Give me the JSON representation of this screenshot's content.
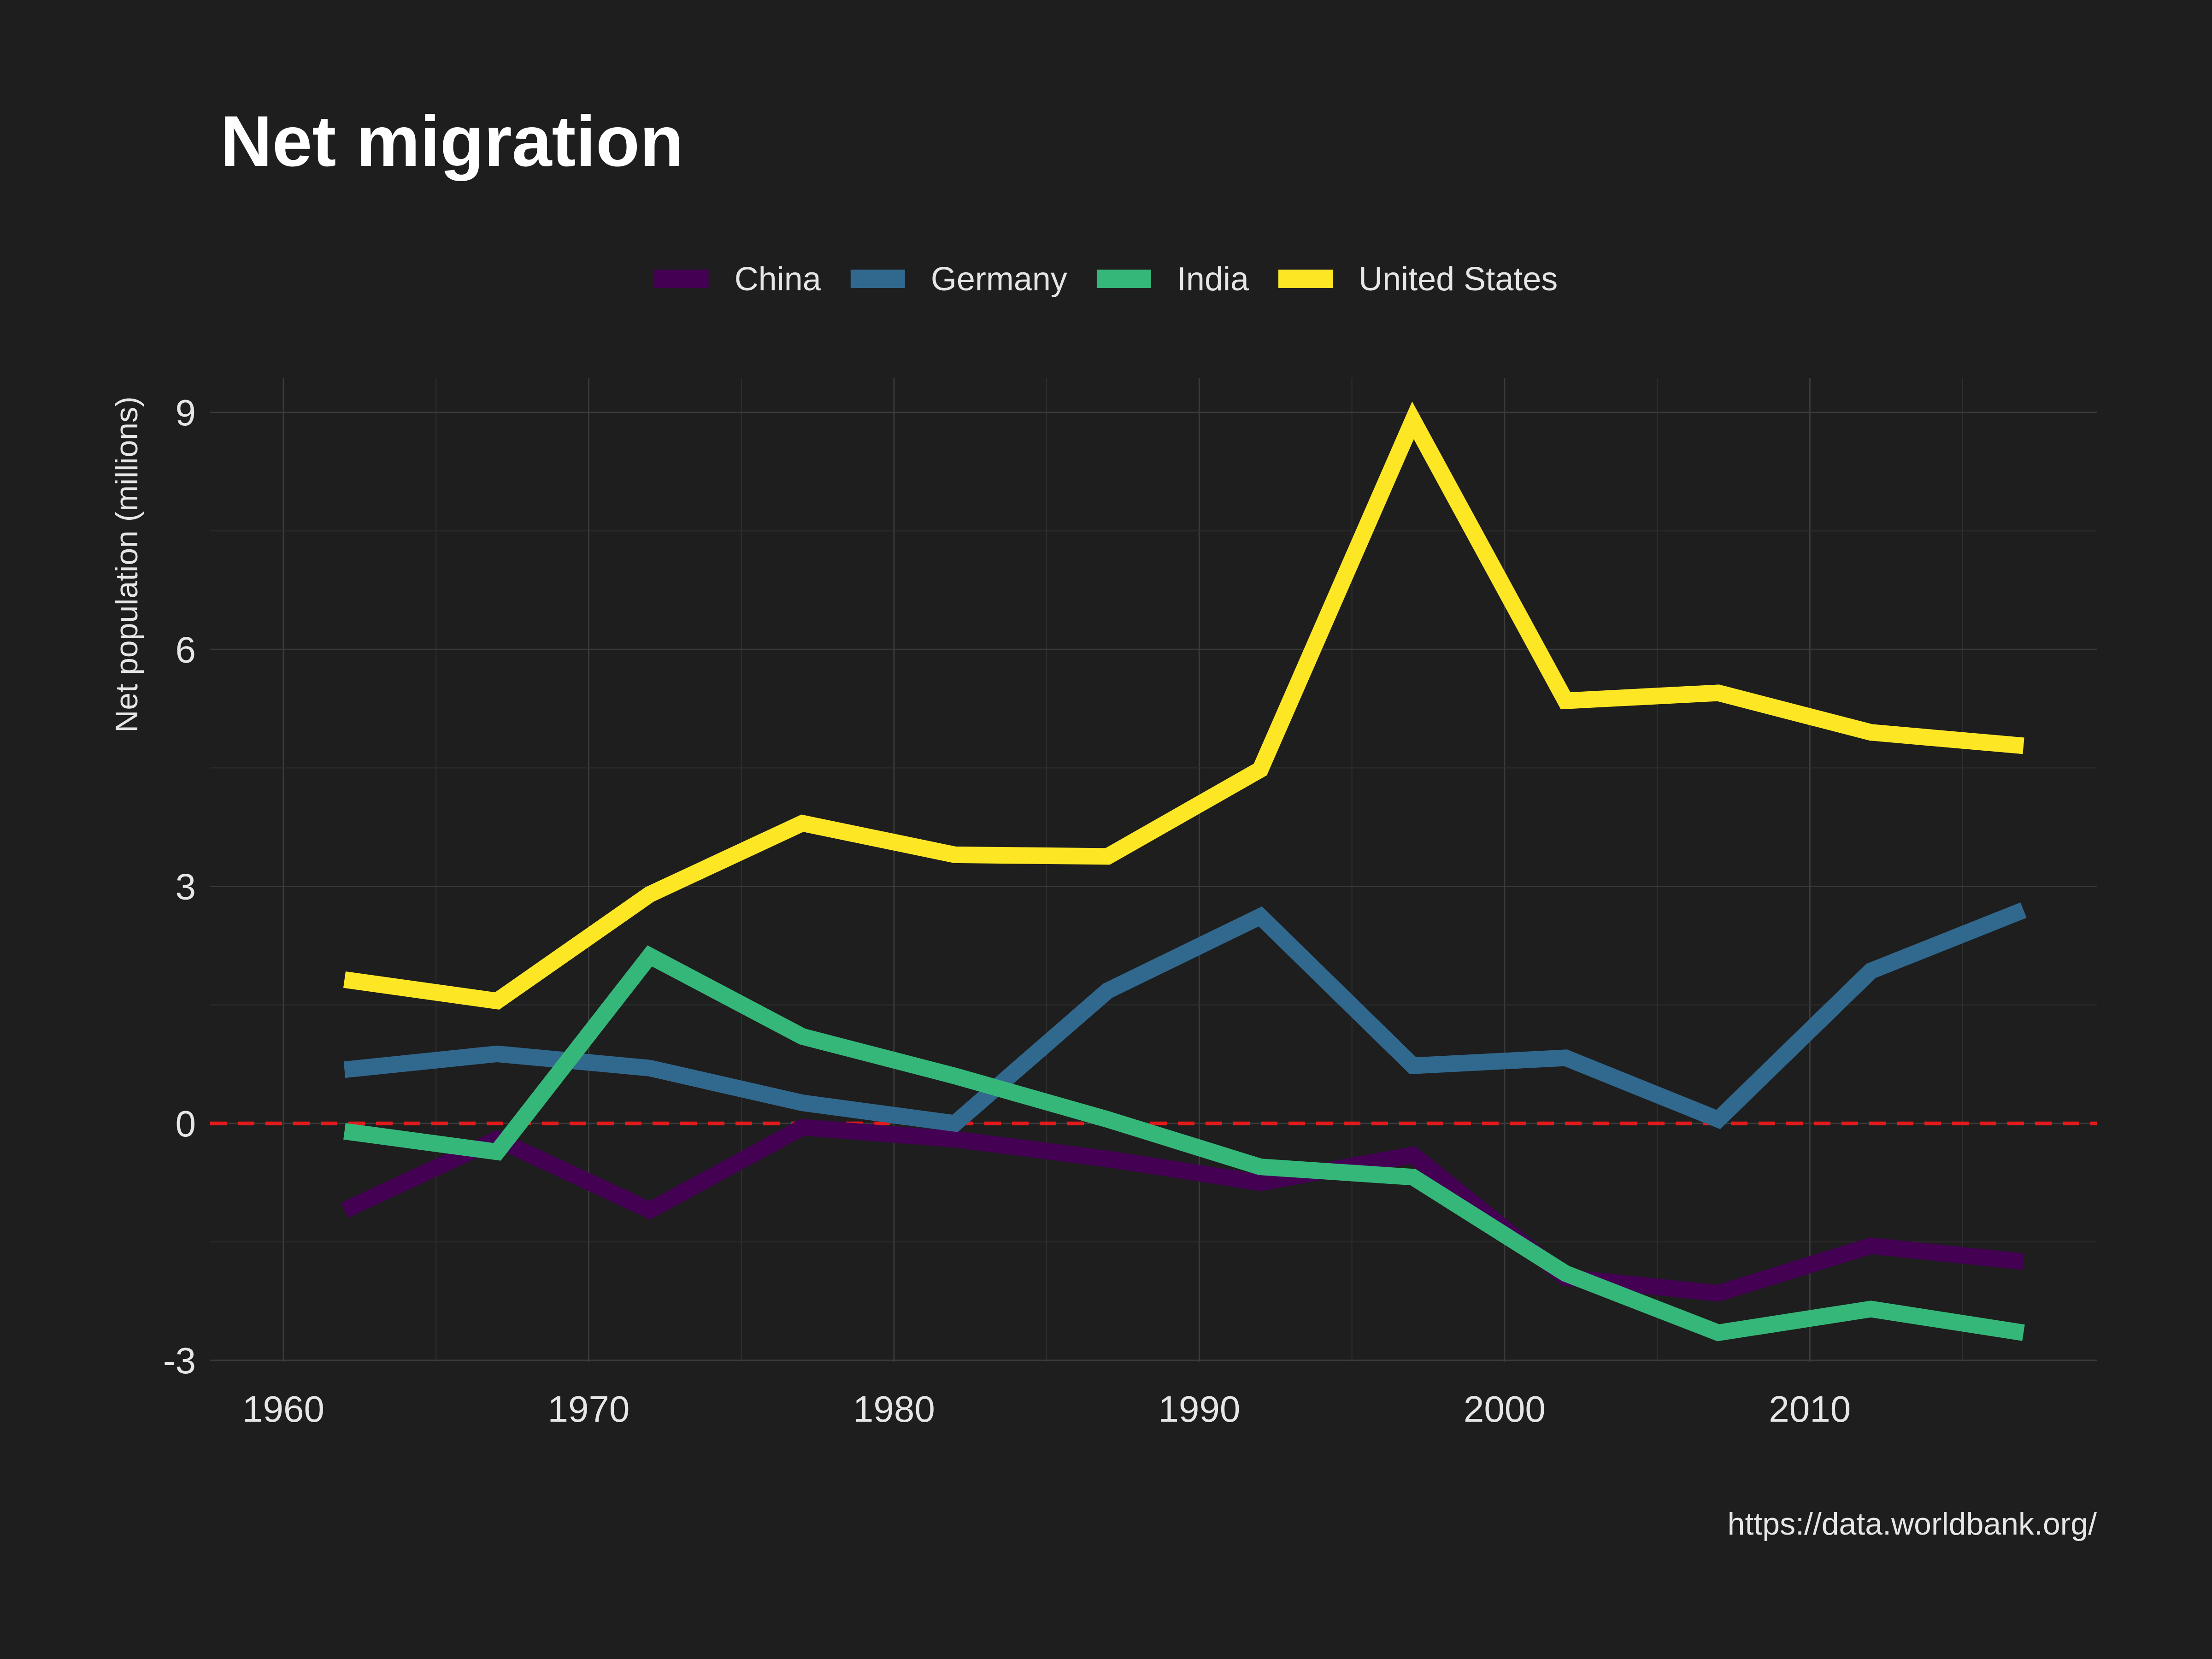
{
  "chart_data": {
    "type": "line",
    "title": "Net migration",
    "ylabel": "Net population (millions)",
    "xlabel": "",
    "caption": "https://data.worldbank.org/",
    "xlim": [
      1957.6,
      2019.4
    ],
    "ylim": [
      -3.0,
      9.0
    ],
    "x_ticks": [
      1960,
      1970,
      1980,
      1990,
      2000,
      2010
    ],
    "y_ticks": [
      -3,
      0,
      3,
      6,
      9
    ],
    "grid": true,
    "legend_position": "top",
    "reference_line": {
      "y": 0,
      "style": "dashed",
      "color": "#e31a1c"
    },
    "x": [
      1962,
      1967,
      1972,
      1977,
      1982,
      1987,
      1992,
      1997,
      2002,
      2007,
      2012,
      2017
    ],
    "series": [
      {
        "name": "China",
        "color": "#440154",
        "values": [
          -1.1,
          -0.2,
          -1.1,
          -0.05,
          -0.2,
          -0.45,
          -0.75,
          -0.4,
          -1.95,
          -2.15,
          -1.55,
          -1.75
        ]
      },
      {
        "name": "Germany",
        "color": "#31688e",
        "values": [
          0.68,
          0.88,
          0.7,
          0.26,
          0.0,
          1.68,
          2.62,
          0.73,
          0.83,
          0.05,
          1.93,
          2.7
        ]
      },
      {
        "name": "India",
        "color": "#35b779",
        "values": [
          -0.1,
          -0.36,
          2.12,
          1.1,
          0.6,
          0.05,
          -0.55,
          -0.68,
          -1.9,
          -2.65,
          -2.35,
          -2.65
        ]
      },
      {
        "name": "United States",
        "color": "#fde725",
        "values": [
          1.82,
          1.55,
          2.9,
          3.8,
          3.4,
          3.38,
          4.48,
          8.9,
          5.35,
          5.45,
          4.95,
          4.78
        ]
      }
    ]
  }
}
